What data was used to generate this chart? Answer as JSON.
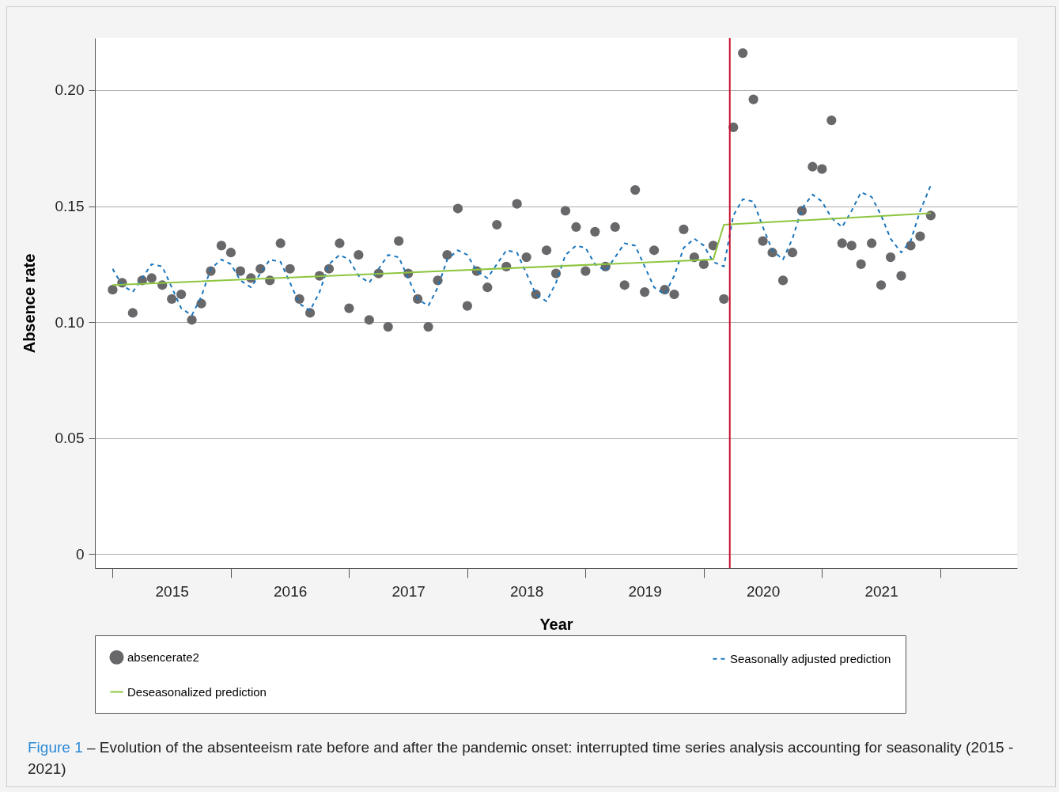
{
  "chart_data": {
    "type": "scatter",
    "xlabel": "Year",
    "ylabel": "Absence rate",
    "x": [
      2015,
      2015.08,
      2015.17,
      2015.25,
      2015.33,
      2015.42,
      2015.5,
      2015.58,
      2015.67,
      2015.75,
      2015.83,
      2015.92,
      2016,
      2016.08,
      2016.17,
      2016.25,
      2016.33,
      2016.42,
      2016.5,
      2016.58,
      2016.67,
      2016.75,
      2016.83,
      2016.92,
      2017,
      2017.08,
      2017.17,
      2017.25,
      2017.33,
      2017.42,
      2017.5,
      2017.58,
      2017.67,
      2017.75,
      2017.83,
      2017.92,
      2018,
      2018.08,
      2018.17,
      2018.25,
      2018.33,
      2018.42,
      2018.5,
      2018.58,
      2018.67,
      2018.75,
      2018.83,
      2018.92,
      2019,
      2019.08,
      2019.17,
      2019.25,
      2019.33,
      2019.42,
      2019.5,
      2019.58,
      2019.67,
      2019.75,
      2019.83,
      2019.92,
      2020,
      2020.08,
      2020.17,
      2020.25,
      2020.33,
      2020.42,
      2020.5,
      2020.58,
      2020.67,
      2020.75,
      2020.83,
      2020.92,
      2021,
      2021.08,
      2021.17,
      2021.25,
      2021.33,
      2021.42,
      2021.5,
      2021.58,
      2021.67,
      2021.75,
      2021.83,
      2021.92
    ],
    "series": [
      {
        "name": "absencerate2",
        "marker": "circle",
        "color": "#68686b",
        "values": [
          0.114,
          0.117,
          0.104,
          0.118,
          0.119,
          0.116,
          0.11,
          0.112,
          0.101,
          0.108,
          0.122,
          0.133,
          0.13,
          0.122,
          0.119,
          0.123,
          0.118,
          0.134,
          0.123,
          0.11,
          0.104,
          0.12,
          0.123,
          0.134,
          0.106,
          0.129,
          0.101,
          0.121,
          0.098,
          0.135,
          0.121,
          0.11,
          0.098,
          0.118,
          0.129,
          0.149,
          0.107,
          0.122,
          0.115,
          0.142,
          0.124,
          0.151,
          0.128,
          0.112,
          0.131,
          0.121,
          0.148,
          0.141,
          0.122,
          0.139,
          0.124,
          0.141,
          0.116,
          0.157,
          0.113,
          0.131,
          0.114,
          0.112,
          0.14,
          0.128,
          0.125,
          0.133,
          0.11,
          0.184,
          0.216,
          0.196,
          0.135,
          0.13,
          0.118,
          0.13,
          0.148,
          0.167,
          0.166,
          0.187,
          0.134,
          0.133,
          0.125,
          0.134,
          0.116,
          0.128,
          0.12,
          0.133,
          0.137,
          0.146
        ]
      },
      {
        "name": "Seasonally adjusted prediction",
        "type": "line",
        "line_style": "dashed",
        "color": "#1a75bc",
        "values": [
          0.123,
          0.116,
          0.113,
          0.119,
          0.125,
          0.124,
          0.115,
          0.106,
          0.103,
          0.111,
          0.123,
          0.127,
          0.125,
          0.118,
          0.115,
          0.121,
          0.127,
          0.126,
          0.117,
          0.108,
          0.105,
          0.113,
          0.125,
          0.129,
          0.127,
          0.12,
          0.117,
          0.123,
          0.129,
          0.128,
          0.119,
          0.11,
          0.107,
          0.115,
          0.127,
          0.131,
          0.129,
          0.122,
          0.119,
          0.125,
          0.131,
          0.13,
          0.121,
          0.112,
          0.109,
          0.117,
          0.129,
          0.133,
          0.132,
          0.125,
          0.122,
          0.128,
          0.134,
          0.133,
          0.124,
          0.115,
          0.112,
          0.12,
          0.132,
          0.136,
          0.133,
          0.126,
          0.124,
          0.146,
          0.153,
          0.152,
          0.141,
          0.131,
          0.127,
          0.136,
          0.149,
          0.155,
          0.152,
          0.145,
          0.141,
          0.148,
          0.156,
          0.154,
          0.146,
          0.136,
          0.13,
          0.135,
          0.148,
          0.159
        ]
      },
      {
        "name": "Deseasonalized prediction",
        "type": "line",
        "line_style": "solid",
        "color": "#8dc63f",
        "x": [
          2015,
          2020.08,
          2020.17,
          2021.92
        ],
        "values": [
          0.116,
          0.127,
          0.142,
          0.147
        ]
      }
    ],
    "xlim": [
      2014.85,
      2022.65
    ],
    "xticks": [
      {
        "value": 2015,
        "label": null
      },
      {
        "value": 2015.5,
        "label": "2015"
      },
      {
        "value": 2016,
        "label": null
      },
      {
        "value": 2016.5,
        "label": "2016"
      },
      {
        "value": 2017,
        "label": null
      },
      {
        "value": 2017.5,
        "label": "2017"
      },
      {
        "value": 2018,
        "label": null
      },
      {
        "value": 2018.5,
        "label": "2018"
      },
      {
        "value": 2019,
        "label": null
      },
      {
        "value": 2019.5,
        "label": "2019"
      },
      {
        "value": 2020,
        "label": null
      },
      {
        "value": 2020.5,
        "label": "2020"
      },
      {
        "value": 2021,
        "label": null
      },
      {
        "value": 2021.5,
        "label": "2021"
      },
      {
        "value": 2022,
        "label": null
      }
    ],
    "ylim": [
      -0.006,
      0.2225
    ],
    "yticks": [
      0,
      0.05,
      {
        "value": 0.1,
        "label": "0.10"
      },
      0.15,
      {
        "value": 0.2,
        "label": "0.20"
      }
    ],
    "grid": "y",
    "legend": "bottom",
    "ref_lines": [
      {
        "axis": "x",
        "value": 2020.22,
        "color": "#c8102e"
      }
    ],
    "annotations": [
      "Figure 1",
      "– Evolution of the absenteeism rate before and after the pandemic onset: interrupted time series analysis accounting for seasonality (2015 - 2021)"
    ]
  }
}
